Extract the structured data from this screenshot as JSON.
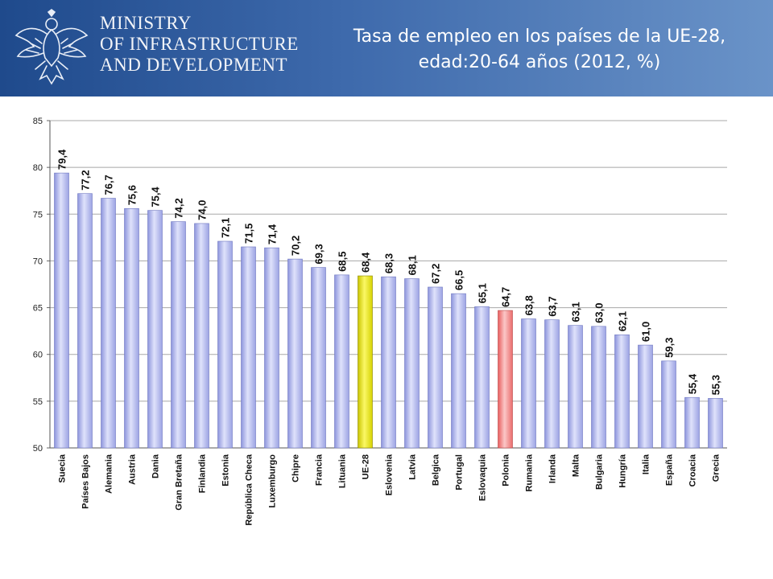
{
  "header": {
    "ministry_lines": [
      "MINISTRY",
      "OF INFRASTRUCTURE",
      "AND DEVELOPMENT"
    ],
    "title_line1": "Tasa de empleo en los países de la UE-28,",
    "title_line2": "edad:20-64 años (2012, %)"
  },
  "colors": {
    "header_start": "#1f4a8c",
    "header_end": "#6a93c8",
    "bar_default": "#b8bef0",
    "bar_eu": "#f2ef1a",
    "bar_poland": "#f47c7c"
  },
  "chart_data": {
    "type": "bar",
    "categories": [
      "Suecia",
      "Países Bajos",
      "Alemania",
      "Austria",
      "Dania",
      "Gran Bretaña",
      "Finlandia",
      "Estonia",
      "República Checa",
      "Luxemburgo",
      "Chipre",
      "Francia",
      "Lituania",
      "UE-28",
      "Eslovenia",
      "Latvia",
      "Belgica",
      "Portugal",
      "Eslovaquia",
      "Polonia",
      "Rumania",
      "Irlanda",
      "Malta",
      "Bulgaria",
      "Hungría",
      "Italia",
      "España",
      "Croacia",
      "Grecia"
    ],
    "values": [
      79.4,
      77.2,
      76.7,
      75.6,
      75.4,
      74.2,
      74.0,
      72.1,
      71.5,
      71.4,
      70.2,
      69.3,
      68.5,
      68.4,
      68.3,
      68.1,
      67.2,
      66.5,
      65.1,
      64.7,
      63.8,
      63.7,
      63.1,
      63.0,
      62.1,
      61.0,
      59.3,
      55.4,
      55.3
    ],
    "data_labels": [
      "79,4",
      "77,2",
      "76,7",
      "75,6",
      "75,4",
      "74,2",
      "74,0",
      "72,1",
      "71,5",
      "71,4",
      "70,2",
      "69,3",
      "68,5",
      "68,4",
      "68,3",
      "68,1",
      "67,2",
      "66,5",
      "65,1",
      "64,7",
      "63,8",
      "63,7",
      "63,1",
      "63,0",
      "62,1",
      "61,0",
      "59,3",
      "55,4",
      "55,3"
    ],
    "highlight": {
      "UE-28": "yellow",
      "Polonia": "red"
    },
    "ylim": [
      50,
      85
    ],
    "yticks": [
      50,
      55,
      60,
      65,
      70,
      75,
      80,
      85
    ],
    "grid": true,
    "legend": "none"
  }
}
